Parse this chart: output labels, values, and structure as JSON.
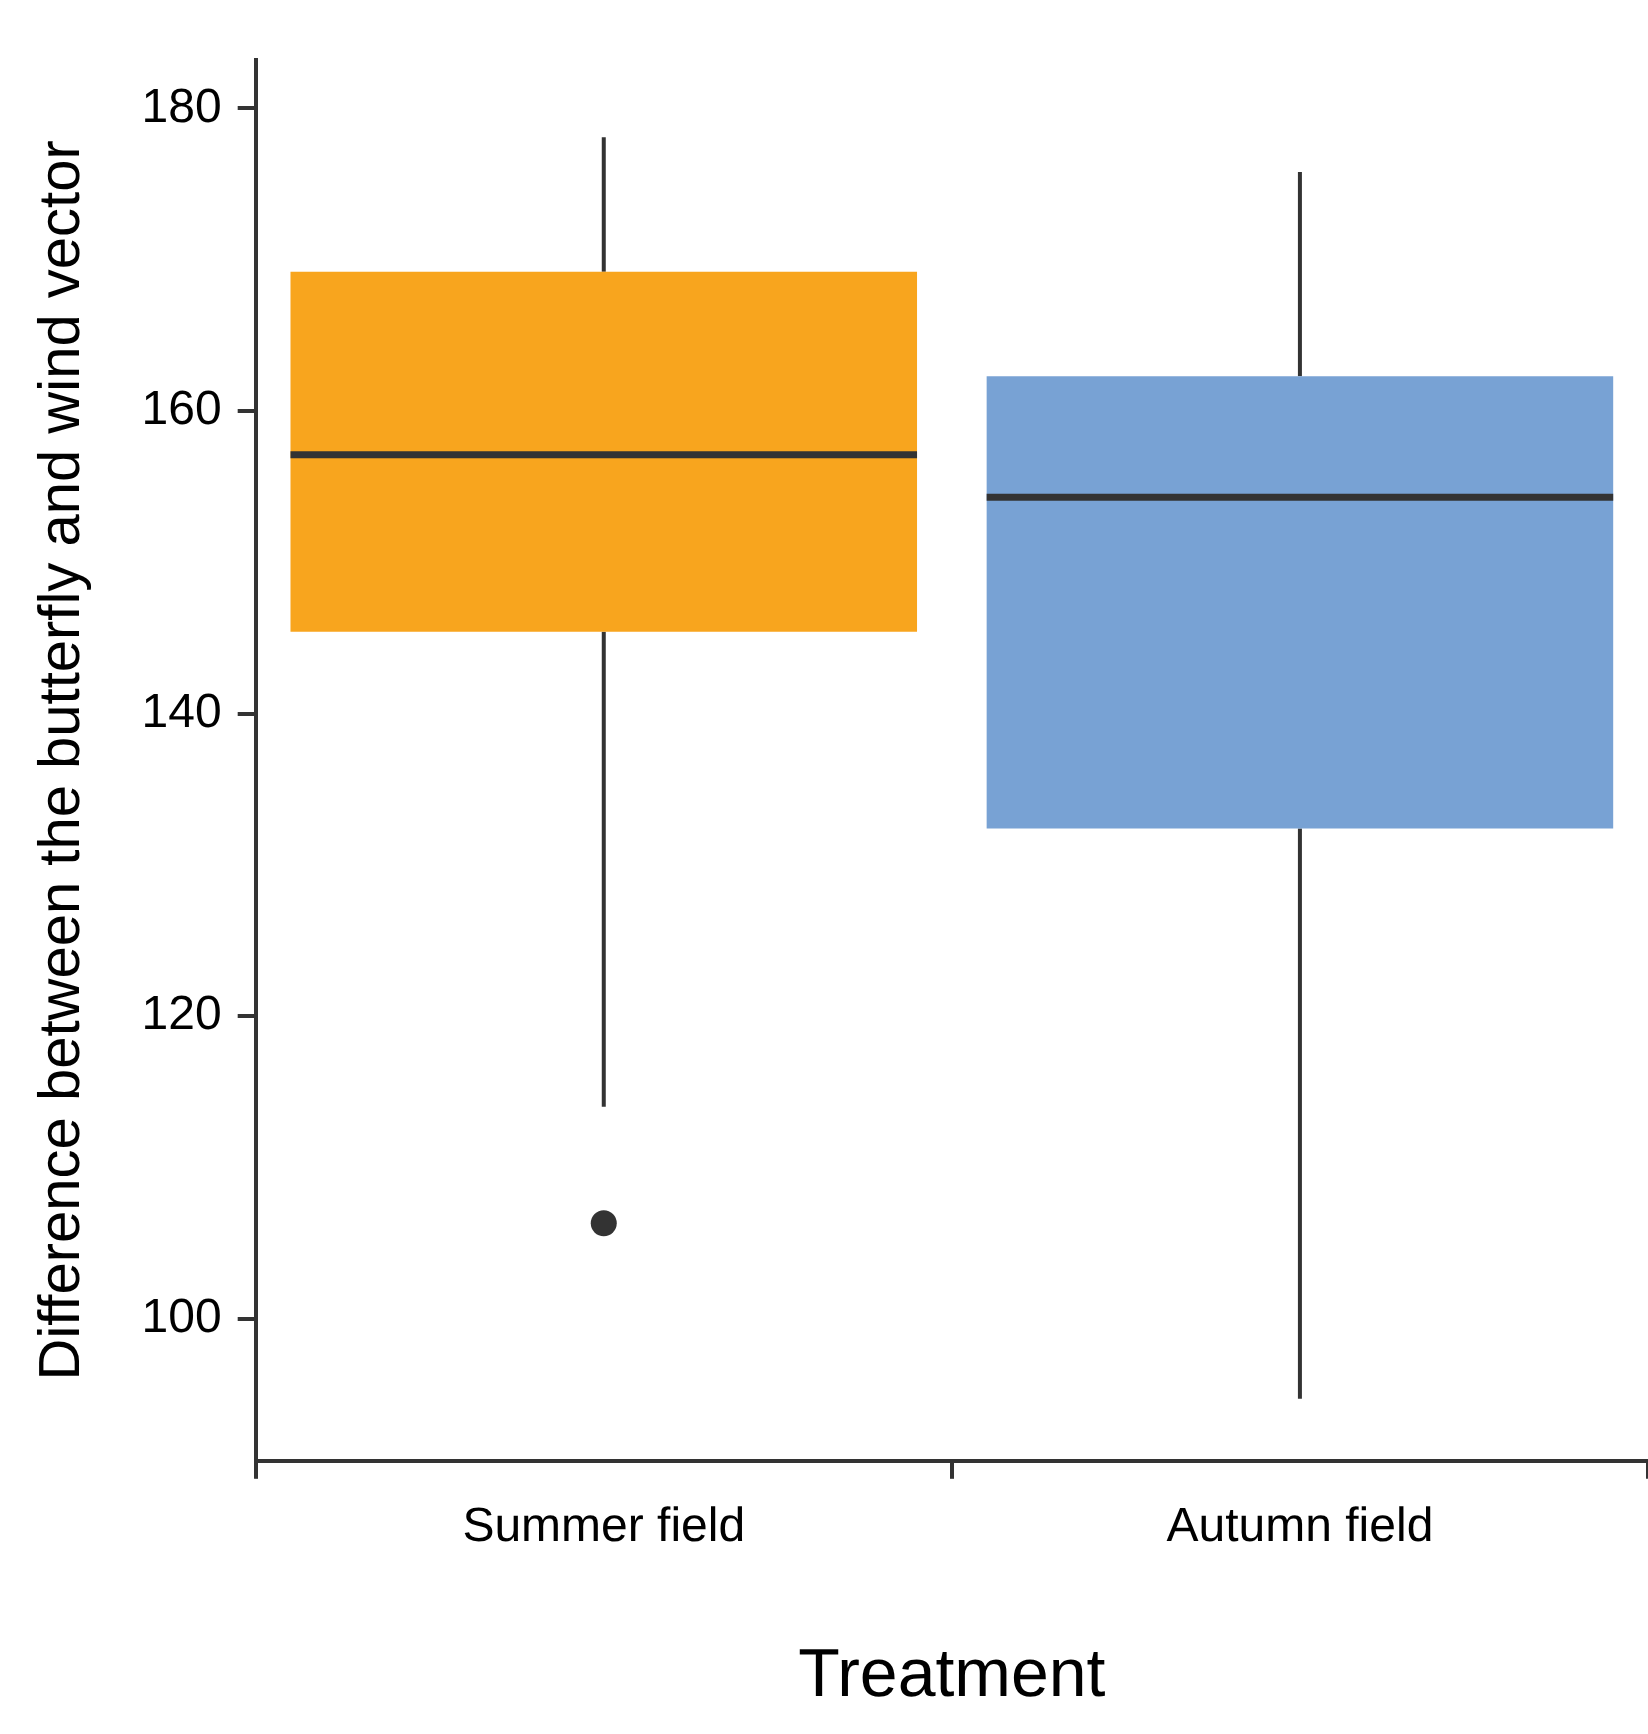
{
  "chart_data": {
    "type": "box",
    "xlabel": "Treatment",
    "ylabel": "Difference between the butterfly and wind vector",
    "categories": [
      "Summer field",
      "Autumn field"
    ],
    "colors": [
      "#f8a51e",
      "#78a2d4"
    ],
    "boxes": [
      {
        "low": 114.0,
        "q1": 145.4,
        "median": 157.1,
        "q3": 169.2,
        "high": 178.1,
        "outliers": [
          106.3
        ]
      },
      {
        "low": 94.7,
        "q1": 132.4,
        "median": 154.3,
        "q3": 162.3,
        "high": 175.8
      }
    ],
    "ylim": [
      90.6,
      183.2
    ],
    "yticks": [
      100,
      120,
      140,
      160,
      180
    ]
  }
}
